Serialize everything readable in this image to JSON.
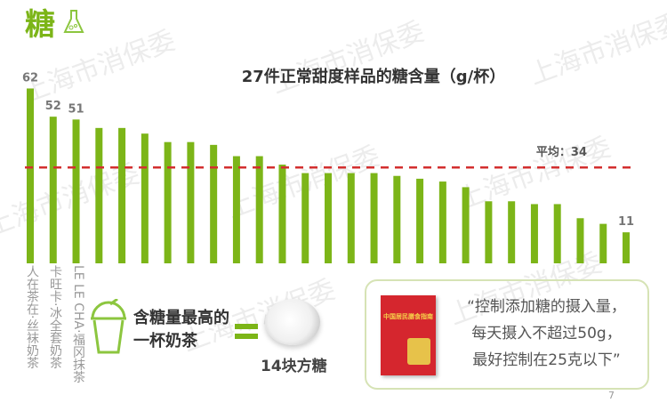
{
  "heading": "糖",
  "watermark": "上海市消保委",
  "chart_data": {
    "type": "bar",
    "title": "27件正常甜度样品的糖含量（g/杯）",
    "categories": [
      "人在茶在·丝袜奶茶",
      "卡旺卡·冰全套奶茶",
      "LE LE CHA·福冈抹茶",
      "",
      "",
      "",
      "",
      "",
      "",
      "",
      "",
      "",
      "",
      "",
      "",
      "",
      "",
      "",
      "",
      "",
      "",
      "",
      "",
      "",
      "",
      "",
      ""
    ],
    "values": [
      62,
      52,
      51,
      48,
      48,
      46,
      43,
      43,
      42,
      38,
      38,
      35,
      32,
      32,
      32,
      32,
      31,
      30,
      29,
      27,
      22,
      22,
      21,
      21,
      16,
      14,
      11
    ],
    "data_labels": {
      "0": "62",
      "1": "52",
      "2": "51",
      "26": "11"
    },
    "average": {
      "label": "平均：34",
      "value": 34
    },
    "ylim": [
      0,
      62
    ],
    "grid": false,
    "bar_color": "#7cb518",
    "average_line_color": "#d32f2f"
  },
  "callout": {
    "highest_label_line1": "含糖量最高的",
    "highest_label_line2": "一杯奶茶",
    "equals_sugar": "14块方糖"
  },
  "quote": {
    "line1": "“控制添加糖的摄入量，",
    "line2": "每天摄入不超过50g，",
    "line3": "最好控制在25克以下”",
    "book_title": "中国居民膳食指南"
  },
  "page_number": "7"
}
